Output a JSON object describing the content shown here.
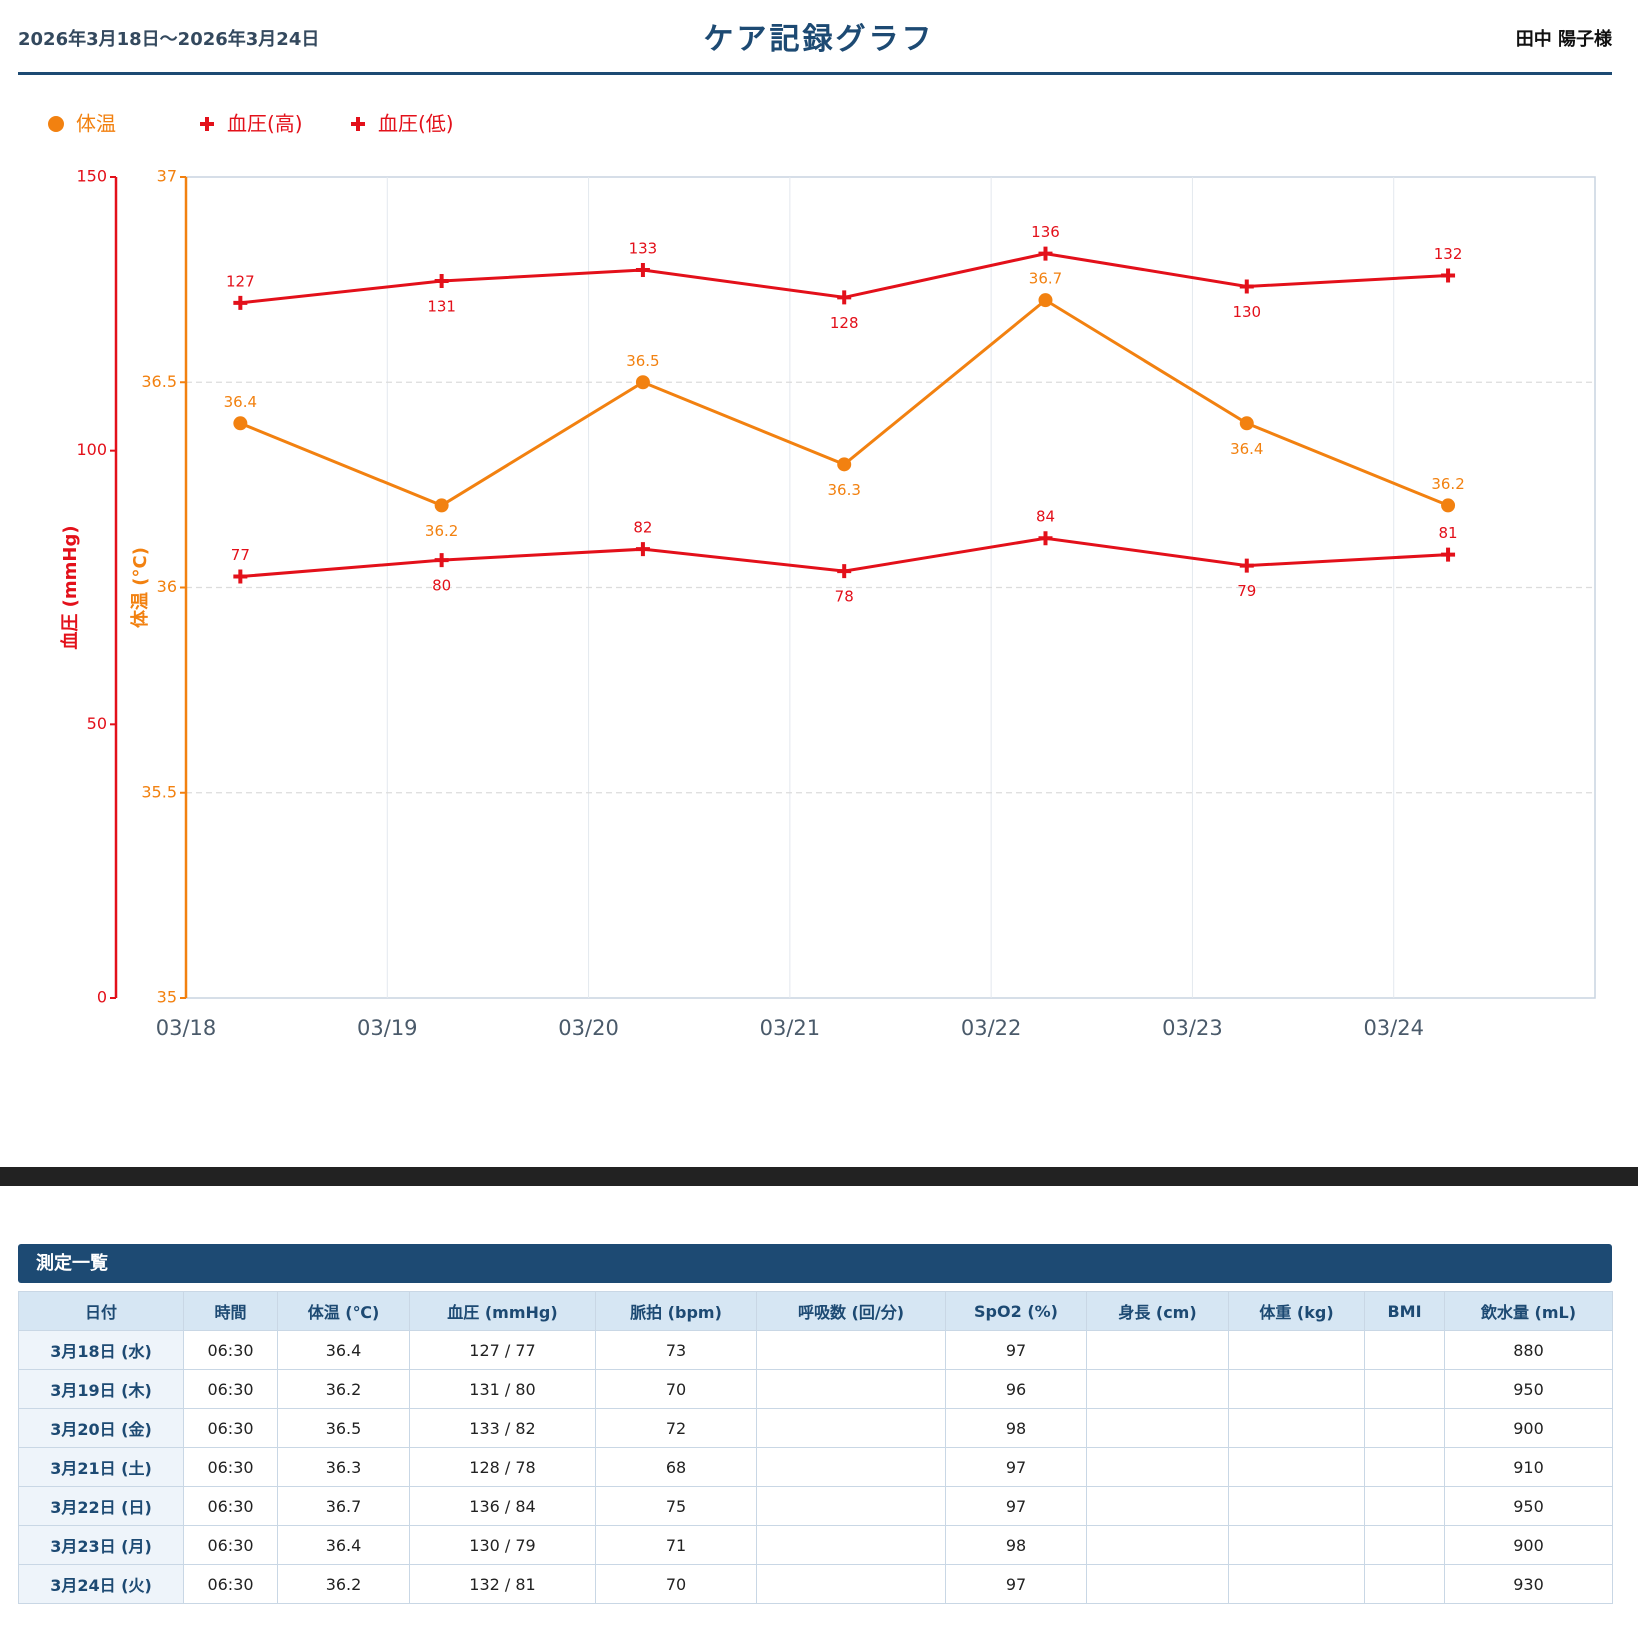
{
  "header": {
    "period": "2026年3月18日〜2026年3月24日",
    "title": "ケア記録グラフ",
    "name": "田中 陽子様"
  },
  "chart_data": {
    "type": "line",
    "legend": "top-left",
    "grid": true,
    "categories": [
      "03/18",
      "03/19",
      "03/20",
      "03/21",
      "03/22",
      "03/23",
      "03/24"
    ],
    "ylabel": "体温 (°C)",
    "ylim": [
      35,
      37
    ],
    "yticks": [
      35,
      35.5,
      36,
      36.5,
      37
    ],
    "y2label": "血圧 (mmHg)",
    "y2lim": [
      0,
      150
    ],
    "y2ticks": [
      0,
      50,
      100,
      150
    ],
    "series": [
      {
        "name": "体温",
        "color": "#f28110",
        "marker": "circle",
        "values": [
          36.4,
          36.2,
          36.5,
          36.3,
          36.7,
          36.4,
          36.2
        ]
      },
      {
        "name": "血圧(高)",
        "color": "#e3101a",
        "marker": "cross",
        "axis": "y2",
        "values": [
          127,
          131,
          133,
          128,
          136,
          130,
          132
        ]
      },
      {
        "name": "血圧(低)",
        "color": "#e3101a",
        "marker": "cross",
        "axis": "y2",
        "values": [
          77,
          80,
          82,
          78,
          84,
          79,
          81
        ]
      }
    ]
  },
  "table": {
    "title": "測定一覧",
    "columns": [
      "日付",
      "時間",
      "体温 (℃)",
      "血圧 (mmHg)",
      "脈拍 (bpm)",
      "呼吸数 (回/分)",
      "SpO2 (%)",
      "身長 (cm)",
      "体重 (kg)",
      "BMI",
      "飲水量 (mL)"
    ],
    "rows": [
      [
        "3月18日 (水)",
        "06:30",
        "36.4",
        "127 / 77",
        "73",
        null,
        "97",
        null,
        null,
        null,
        "880"
      ],
      [
        "3月19日 (木)",
        "06:30",
        "36.2",
        "131 / 80",
        "70",
        null,
        "96",
        null,
        null,
        null,
        "950"
      ],
      [
        "3月20日 (金)",
        "06:30",
        "36.5",
        "133 / 82",
        "72",
        null,
        "98",
        null,
        null,
        null,
        "900"
      ],
      [
        "3月21日 (土)",
        "06:30",
        "36.3",
        "128 / 78",
        "68",
        null,
        "97",
        null,
        null,
        null,
        "910"
      ],
      [
        "3月22日 (日)",
        "06:30",
        "36.7",
        "136 / 84",
        "75",
        null,
        "97",
        null,
        null,
        null,
        "950"
      ],
      [
        "3月23日 (月)",
        "06:30",
        "36.4",
        "130 / 79",
        "71",
        null,
        "98",
        null,
        null,
        null,
        "900"
      ],
      [
        "3月24日 (火)",
        "06:30",
        "36.2",
        "132 / 81",
        "70",
        null,
        "97",
        null,
        null,
        null,
        "930"
      ]
    ]
  }
}
